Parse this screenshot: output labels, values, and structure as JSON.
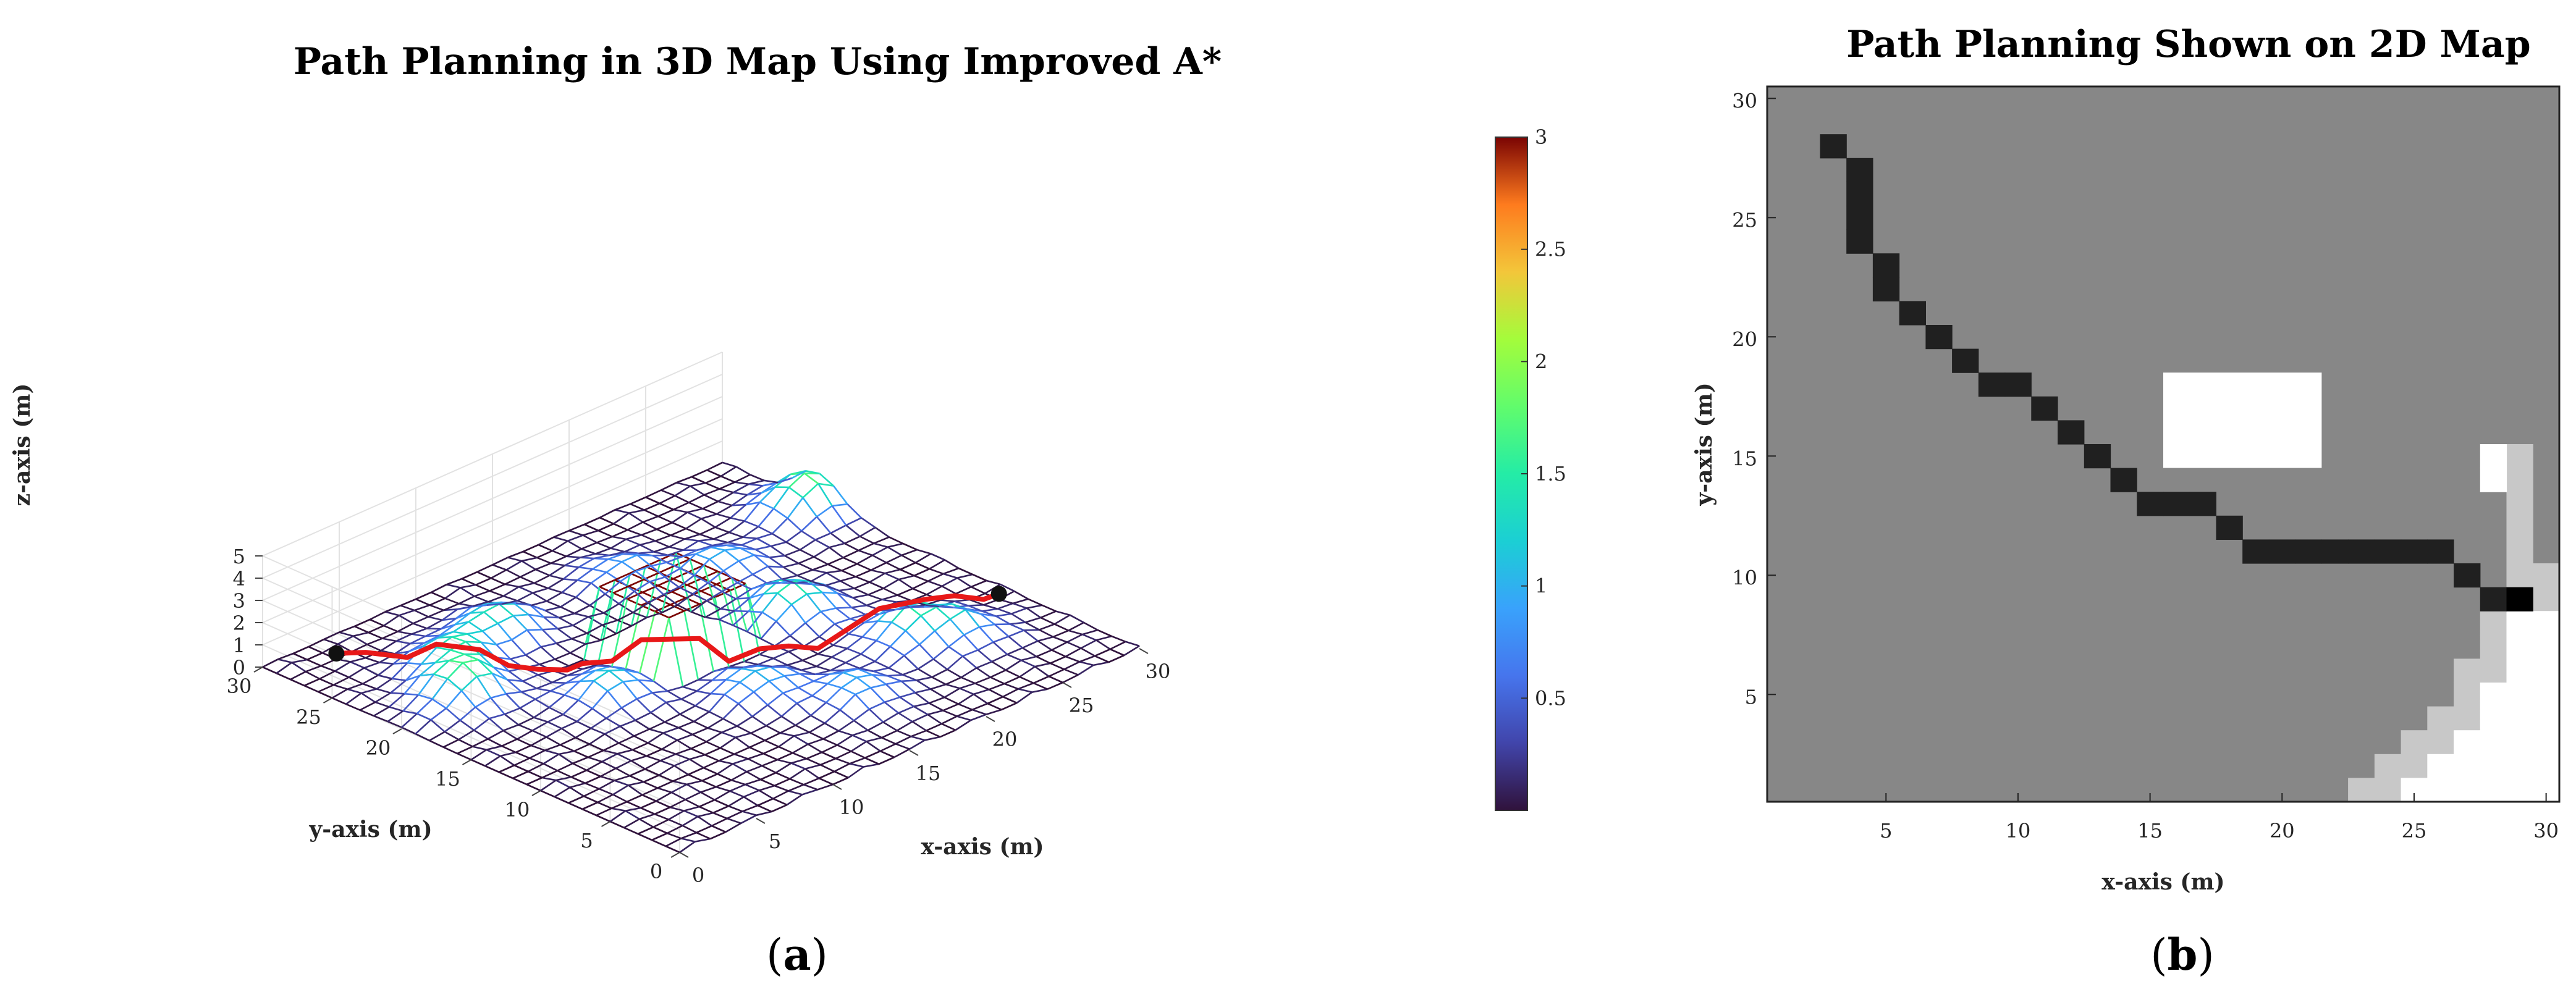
{
  "chart_data": [
    {
      "type": "surface",
      "panel_label": "a",
      "title": "Path Planning in 3D Map Using Improved A*",
      "xlabel": "x-axis  (m)",
      "ylabel": "y-axis  (m)",
      "zlabel": "z-axis  (m)",
      "xlim": [
        0,
        30
      ],
      "ylim": [
        0,
        30
      ],
      "zlim": [
        0,
        5
      ],
      "x_ticks": [
        "0",
        "5",
        "10",
        "15",
        "20",
        "25",
        "30"
      ],
      "y_ticks": [
        "0",
        "5",
        "10",
        "15",
        "20",
        "25",
        "30"
      ],
      "z_ticks": [
        "0",
        "1",
        "2",
        "3",
        "4",
        "5"
      ],
      "colorbar_ticks": [
        "0.5",
        "1",
        "1.5",
        "2",
        "2.5",
        "3"
      ],
      "colorbar_range": [
        0,
        3
      ],
      "obstacles": [
        {
          "kind": "block",
          "x": [
            12,
            17
          ],
          "y": [
            14,
            19
          ],
          "height": 3
        },
        {
          "kind": "hill",
          "x": 4,
          "y": 20,
          "height": 1.6
        },
        {
          "kind": "hill",
          "x": 6,
          "y": 23,
          "height": 1.3
        },
        {
          "kind": "hill",
          "x": 10,
          "y": 24,
          "height": 1.4
        },
        {
          "kind": "hill",
          "x": 9,
          "y": 15,
          "height": 1.2
        },
        {
          "kind": "hill",
          "x": 14,
          "y": 10,
          "height": 1.1
        },
        {
          "kind": "hill",
          "x": 18,
          "y": 24,
          "height": 0.9
        },
        {
          "kind": "hill",
          "x": 21,
          "y": 15,
          "height": 1.6
        },
        {
          "kind": "hill",
          "x": 22,
          "y": 21,
          "height": 1.0
        },
        {
          "kind": "hill",
          "x": 23,
          "y": 9,
          "height": 1.3
        },
        {
          "kind": "hill",
          "x": 25,
          "y": 7,
          "height": 0.9
        },
        {
          "kind": "hill",
          "x": 29,
          "y": 23,
          "height": 1.8
        },
        {
          "kind": "hill",
          "x": 17,
          "y": 6,
          "height": 1.0
        }
      ],
      "path": {
        "color": "#e81818",
        "start": [
          3,
          28
        ],
        "end": [
          29,
          9
        ],
        "points": [
          [
            3,
            28
          ],
          [
            4,
            27
          ],
          [
            4,
            24
          ],
          [
            5,
            23
          ],
          [
            6,
            21
          ],
          [
            7,
            20
          ],
          [
            8,
            19
          ],
          [
            9,
            18
          ],
          [
            10,
            18
          ],
          [
            11,
            17
          ],
          [
            12,
            16
          ],
          [
            13,
            15
          ],
          [
            14,
            14
          ],
          [
            15,
            13
          ],
          [
            17,
            13
          ],
          [
            18,
            12
          ],
          [
            19,
            11
          ],
          [
            23,
            11
          ],
          [
            26,
            11
          ],
          [
            27,
            10
          ],
          [
            28,
            9
          ],
          [
            29,
            9
          ]
        ]
      }
    },
    {
      "type": "heatmap",
      "panel_label": "b",
      "title": "Path Planning Shown on 2D Map",
      "xlabel": "x-axis  (m)",
      "ylabel": "y-axis  (m)",
      "xlim": [
        0.5,
        30.5
      ],
      "ylim": [
        0.5,
        30.5
      ],
      "x_ticks": [
        "5",
        "10",
        "15",
        "20",
        "25",
        "30"
      ],
      "y_ticks": [
        "5",
        "10",
        "15",
        "20",
        "25",
        "30"
      ],
      "colors": {
        "free": "#878787",
        "obstacle": "#ffffff",
        "near_obstacle": "#c8c8c8",
        "path": "#202020",
        "goal": "#000000"
      },
      "obstacle_rect": {
        "x": [
          16,
          21
        ],
        "y": [
          15,
          18
        ]
      },
      "path_cells": [
        [
          3,
          28
        ],
        [
          4,
          27
        ],
        [
          4,
          26
        ],
        [
          4,
          25
        ],
        [
          4,
          24
        ],
        [
          5,
          23
        ],
        [
          5,
          22
        ],
        [
          6,
          21
        ],
        [
          7,
          20
        ],
        [
          8,
          19
        ],
        [
          9,
          18
        ],
        [
          10,
          18
        ],
        [
          11,
          17
        ],
        [
          12,
          16
        ],
        [
          13,
          15
        ],
        [
          14,
          14
        ],
        [
          15,
          13
        ],
        [
          16,
          13
        ],
        [
          17,
          13
        ],
        [
          18,
          12
        ],
        [
          19,
          11
        ],
        [
          20,
          11
        ],
        [
          21,
          11
        ],
        [
          22,
          11
        ],
        [
          23,
          11
        ],
        [
          24,
          11
        ],
        [
          25,
          11
        ],
        [
          26,
          11
        ],
        [
          27,
          10
        ],
        [
          28,
          9
        ]
      ],
      "goal_cell": [
        29,
        9
      ],
      "white_cells": [
        [
          28,
          15
        ],
        [
          28,
          14
        ],
        [
          29,
          8
        ],
        [
          29,
          7
        ],
        [
          29,
          6
        ],
        [
          28,
          5
        ],
        [
          28,
          4
        ],
        [
          27,
          3
        ],
        [
          28,
          3
        ],
        [
          26,
          2
        ],
        [
          27,
          2
        ],
        [
          28,
          2
        ],
        [
          25,
          1
        ],
        [
          26,
          1
        ],
        [
          27,
          1
        ],
        [
          28,
          1
        ],
        [
          29,
          1
        ],
        [
          29,
          2
        ],
        [
          29,
          3
        ],
        [
          29,
          4
        ],
        [
          29,
          5
        ],
        [
          30,
          1
        ],
        [
          30,
          2
        ],
        [
          30,
          3
        ],
        [
          30,
          4
        ],
        [
          30,
          5
        ],
        [
          30,
          6
        ],
        [
          30,
          7
        ],
        [
          30,
          8
        ]
      ],
      "gray_cells": [
        [
          29,
          15
        ],
        [
          29,
          14
        ],
        [
          29,
          13
        ],
        [
          29,
          12
        ],
        [
          29,
          11
        ],
        [
          29,
          10
        ],
        [
          30,
          10
        ],
        [
          30,
          9
        ],
        [
          28,
          8
        ],
        [
          28,
          7
        ],
        [
          28,
          6
        ],
        [
          27,
          6
        ],
        [
          27,
          5
        ],
        [
          27,
          4
        ],
        [
          26,
          4
        ],
        [
          26,
          3
        ],
        [
          25,
          3
        ],
        [
          25,
          2
        ],
        [
          24,
          2
        ],
        [
          23,
          1
        ],
        [
          24,
          1
        ]
      ]
    }
  ]
}
